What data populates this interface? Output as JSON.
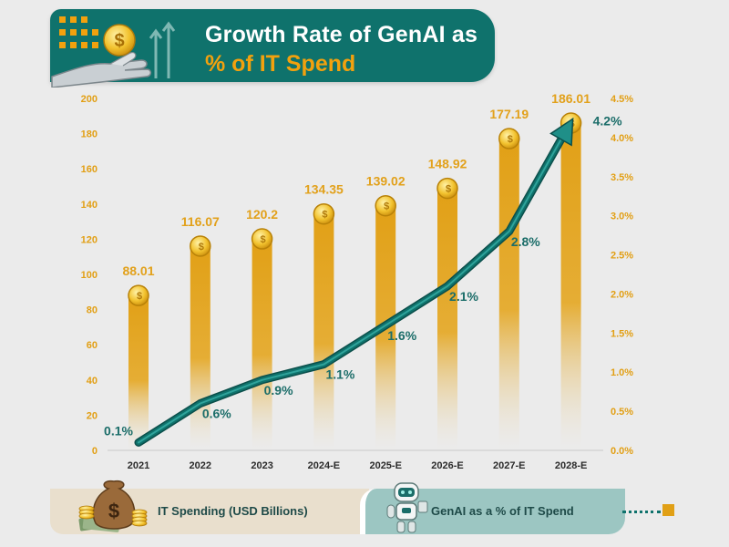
{
  "header": {
    "title_line1": "Growth Rate of GenAI as",
    "title_line2": "% of IT Spend"
  },
  "legend": {
    "spending": "IT Spending (USD Billions)",
    "genai": "GenAI as a % of IT Spend"
  },
  "colors": {
    "teal": "#0f726c",
    "bar": "#e1a016",
    "value_label": "#e2a11b",
    "axis_label": "#e29f14",
    "pct_label": "#1b6d69"
  },
  "icons": [
    "robot-hand-coin-icon",
    "money-bag-icon",
    "robot-icon"
  ],
  "chart_data": {
    "type": "bar",
    "categories": [
      "2021",
      "2022",
      "2023",
      "2024-E",
      "2025-E",
      "2026-E",
      "2027-E",
      "2028-E"
    ],
    "series": [
      {
        "name": "IT Spending (USD Billions)",
        "type": "bar",
        "axis": "left",
        "values": [
          88.01,
          116.07,
          120.2,
          134.35,
          139.02,
          148.92,
          177.19,
          186.01
        ],
        "labels": [
          "88.01",
          "116.07",
          "120.2",
          "134.35",
          "139.02",
          "148.92",
          "177.19",
          "186.01"
        ]
      },
      {
        "name": "GenAI as a % of IT Spend",
        "type": "line",
        "axis": "right",
        "values": [
          0.1,
          0.6,
          0.9,
          1.1,
          1.6,
          2.1,
          2.8,
          4.2
        ],
        "labels": [
          "0.1%",
          "0.6%",
          "0.9%",
          "1.1%",
          "1.6%",
          "2.1%",
          "2.8%",
          "4.2%"
        ]
      }
    ],
    "y_left": {
      "min": 0,
      "max": 200,
      "ticks": [
        "0",
        "20",
        "40",
        "60",
        "80",
        "100",
        "120",
        "140",
        "160",
        "180",
        "200"
      ]
    },
    "y_right": {
      "min": 0,
      "max": 4.5,
      "ticks": [
        "0.0%",
        "0.5%",
        "1.0%",
        "1.5%",
        "2.0%",
        "2.5%",
        "3.0%",
        "3.5%",
        "4.0%",
        "4.5%"
      ]
    },
    "grid": false,
    "legend_position": "bottom"
  }
}
